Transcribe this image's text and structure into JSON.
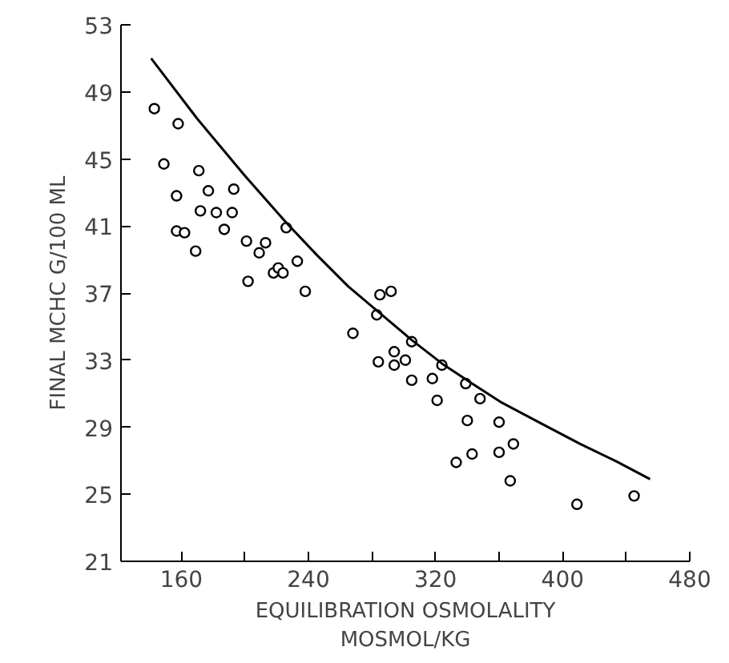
{
  "chart_data": {
    "type": "scatter",
    "xlabel": "EQUILIBRATION OSMOLALITY\nMOSMOL/KG",
    "ylabel": "FINAL MCHC G/100 ML",
    "xlim": [
      122,
      480
    ],
    "ylim": [
      21,
      53
    ],
    "xticks": [
      160,
      {
        "value": 200,
        "label": null
      },
      240,
      {
        "value": 280,
        "label": null
      },
      320,
      {
        "value": 360,
        "label": null
      },
      400,
      {
        "value": 440,
        "label": null
      },
      480
    ],
    "yticks": [
      21,
      25,
      29,
      33,
      37,
      41,
      45,
      49,
      53
    ],
    "grid": false,
    "marker": "circle",
    "series": [
      {
        "color": "#000000",
        "x": [
          143,
          158,
          149,
          171,
          157,
          177,
          193,
          172,
          182,
          192,
          157,
          162,
          187,
          169,
          201,
          213,
          209,
          226,
          218,
          221,
          224,
          233,
          202,
          238,
          285,
          292,
          283,
          268,
          305,
          284,
          294,
          294,
          301,
          324,
          305,
          318,
          339,
          321,
          348,
          340,
          360,
          369,
          333,
          343,
          360,
          367,
          409,
          445
        ],
        "values": [
          48.0,
          47.1,
          44.7,
          44.3,
          42.8,
          43.1,
          43.2,
          41.9,
          41.8,
          41.8,
          40.7,
          40.6,
          40.8,
          39.5,
          40.1,
          40.0,
          39.4,
          40.9,
          38.2,
          38.5,
          38.2,
          38.9,
          37.7,
          37.1,
          36.9,
          37.1,
          35.7,
          34.6,
          34.1,
          32.9,
          33.5,
          32.7,
          33.0,
          32.7,
          31.8,
          31.9,
          31.6,
          30.6,
          30.7,
          29.4,
          29.3,
          28.0,
          26.9,
          27.4,
          27.5,
          25.8,
          24.4,
          24.9
        ]
      },
      {
        "type": "line",
        "marker": "none",
        "color": "#000000",
        "x": [
          141,
          170,
          200,
          226,
          245,
          265,
          285,
          305,
          324,
          343,
          361,
          387,
          411,
          433,
          455
        ],
        "values": [
          51.0,
          47.4,
          44.0,
          41.2,
          39.3,
          37.4,
          35.8,
          34.2,
          32.8,
          31.6,
          30.5,
          29.2,
          28.0,
          27.0,
          25.9
        ]
      }
    ]
  }
}
